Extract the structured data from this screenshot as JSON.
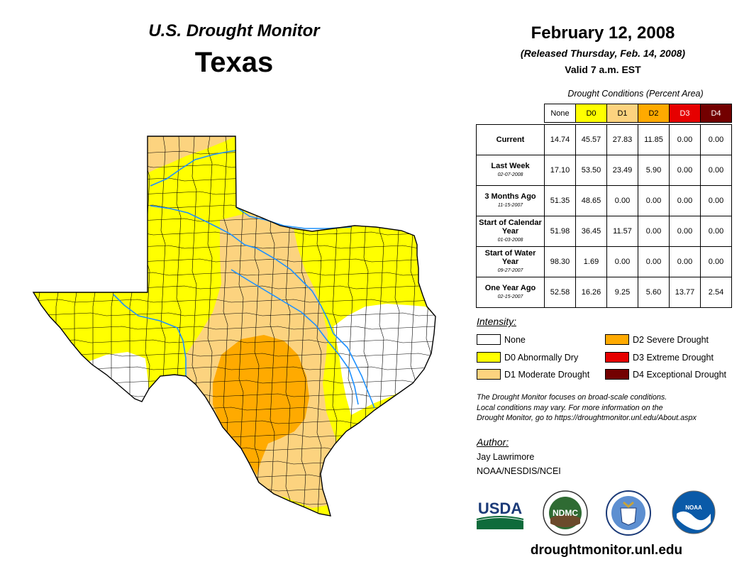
{
  "header": {
    "subtitle": "U.S. Drought Monitor",
    "state": "Texas",
    "date": "February 12, 2008",
    "released": "(Released Thursday, Feb. 14, 2008)",
    "valid": "Valid 7 a.m. EST"
  },
  "table": {
    "caption": "Drought Conditions (Percent Area)",
    "columns": [
      "None",
      "D0",
      "D1",
      "D2",
      "D3",
      "D4"
    ],
    "rows": [
      {
        "label": "Current",
        "date": "",
        "values": [
          "14.74",
          "45.57",
          "27.83",
          "11.85",
          "0.00",
          "0.00"
        ]
      },
      {
        "label": "Last Week",
        "date": "02-07-2008",
        "values": [
          "17.10",
          "53.50",
          "23.49",
          "5.90",
          "0.00",
          "0.00"
        ]
      },
      {
        "label": "3 Months Ago",
        "date": "11-15-2007",
        "values": [
          "51.35",
          "48.65",
          "0.00",
          "0.00",
          "0.00",
          "0.00"
        ]
      },
      {
        "label": "Start of Calendar Year",
        "date": "01-03-2008",
        "values": [
          "51.98",
          "36.45",
          "11.57",
          "0.00",
          "0.00",
          "0.00"
        ]
      },
      {
        "label": "Start of Water Year",
        "date": "09-27-2007",
        "values": [
          "98.30",
          "1.69",
          "0.00",
          "0.00",
          "0.00",
          "0.00"
        ]
      },
      {
        "label": "One Year Ago",
        "date": "02-15-2007",
        "values": [
          "52.58",
          "16.26",
          "9.25",
          "5.60",
          "13.77",
          "2.54"
        ]
      }
    ]
  },
  "legend": {
    "title": "Intensity:",
    "items": [
      {
        "label": "None",
        "color": "#ffffff"
      },
      {
        "label": "D0 Abnormally Dry",
        "color": "#ffff00"
      },
      {
        "label": "D1 Moderate Drought",
        "color": "#fcd37f"
      },
      {
        "label": "D2 Severe Drought",
        "color": "#ffaa00"
      },
      {
        "label": "D3 Extreme Drought",
        "color": "#e60000"
      },
      {
        "label": "D4 Exceptional Drought",
        "color": "#730000"
      }
    ]
  },
  "note": {
    "line1": "The Drought Monitor focuses on broad-scale conditions.",
    "line2": "Local conditions may vary. For more information on the",
    "line3": "Drought Monitor, go to https://droughtmonitor.unl.edu/About.aspx"
  },
  "author": {
    "title": "Author:",
    "name": "Jay Lawrimore",
    "org": "NOAA/NESDIS/NCEI"
  },
  "logos": {
    "usda": "USDA",
    "ndmc": "NDMC",
    "noaa": "NOAA"
  },
  "footer": {
    "website": "droughtmonitor.unl.edu"
  },
  "colors": {
    "none": "#ffffff",
    "d0": "#ffff00",
    "d1": "#fcd37f",
    "d2": "#ffaa00",
    "d3": "#e60000",
    "d4": "#730000",
    "river": "#1e90ff"
  }
}
